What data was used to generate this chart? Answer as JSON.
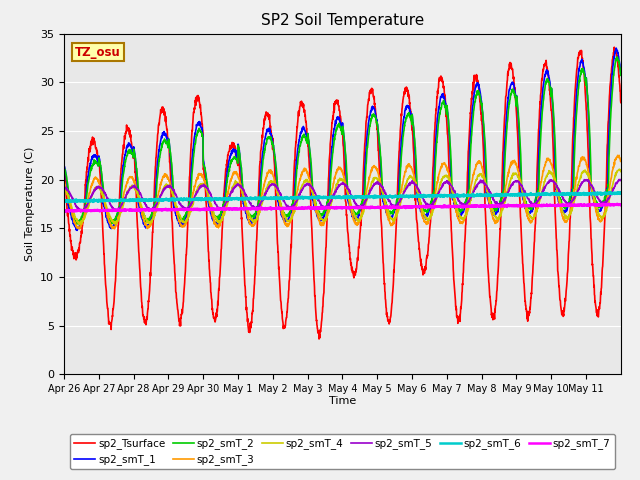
{
  "title": "SP2 Soil Temperature",
  "ylabel": "Soil Temperature (C)",
  "xlabel": "Time",
  "ylim": [
    0,
    35
  ],
  "yticks": [
    0,
    5,
    10,
    15,
    20,
    25,
    30,
    35
  ],
  "plot_bg_color": "#e8e8e8",
  "tz_label": "TZ_osu",
  "series_names": [
    "sp2_Tsurface",
    "sp2_smT_1",
    "sp2_smT_2",
    "sp2_smT_3",
    "sp2_smT_4",
    "sp2_smT_5",
    "sp2_smT_6",
    "sp2_smT_7"
  ],
  "series_colors": [
    "#ff0000",
    "#0000ff",
    "#00cc00",
    "#ff9900",
    "#cccc00",
    "#9900cc",
    "#00cccc",
    "#ff00ff"
  ],
  "series_lw": [
    1.2,
    1.2,
    1.2,
    1.2,
    1.2,
    1.2,
    1.8,
    1.8
  ],
  "x_tick_labels": [
    "Apr 26",
    "Apr 27",
    "Apr 28",
    "Apr 29",
    "Apr 30",
    "May 1",
    "May 2",
    "May 3",
    "May 4",
    "May 5",
    "May 6",
    "May 7",
    "May 8",
    "May 9",
    "May 10",
    "May 11"
  ],
  "n_days": 16,
  "pts_per_day": 144
}
